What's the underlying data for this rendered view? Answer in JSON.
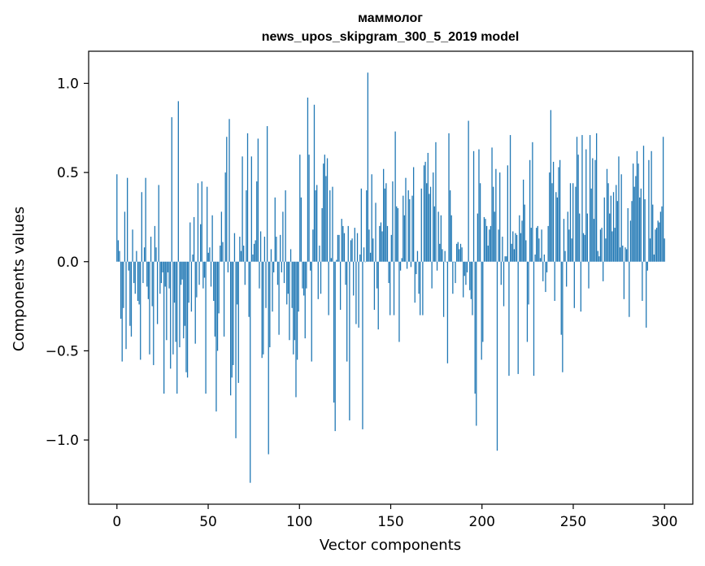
{
  "chart_data": {
    "type": "bar",
    "title": "маммолог",
    "subtitle": "news_upos_skipgram_300_5_2019 model",
    "xlabel": "Vector components",
    "ylabel": "Components values",
    "xlim": [
      -15.5,
      315.5
    ],
    "ylim": [
      -1.36,
      1.18
    ],
    "xticks": [
      0,
      50,
      100,
      150,
      200,
      250,
      300
    ],
    "yticks": [
      -1.0,
      -0.5,
      0.0,
      0.5,
      1.0
    ],
    "ytick_labels": [
      "−1.0",
      "−0.5",
      "0.0",
      "0.5",
      "1.0"
    ],
    "grid": false,
    "bar_color": "#1f77b4",
    "values": [
      0.49,
      0.12,
      0.06,
      -0.32,
      -0.56,
      -0.26,
      0.28,
      -0.49,
      0.47,
      -0.05,
      -0.36,
      -0.42,
      0.18,
      -0.12,
      -0.18,
      0.06,
      -0.22,
      -0.24,
      -0.55,
      0.39,
      -0.12,
      0.08,
      0.47,
      -0.14,
      -0.21,
      -0.52,
      0.14,
      -0.25,
      -0.58,
      0.2,
      0.08,
      -0.35,
      0.43,
      -0.18,
      -0.12,
      -0.06,
      -0.74,
      -0.14,
      -0.44,
      -0.06,
      -0.15,
      -0.6,
      0.81,
      -0.52,
      -0.23,
      -0.45,
      -0.74,
      0.9,
      -0.48,
      -0.13,
      -0.1,
      -0.43,
      -0.36,
      -0.62,
      -0.65,
      -0.23,
      0.22,
      -0.28,
      0.04,
      0.25,
      -0.46,
      -0.2,
      0.44,
      -0.13,
      0.21,
      0.45,
      -0.15,
      -0.09,
      -0.74,
      0.42,
      0.05,
      0.08,
      -0.14,
      0.26,
      -0.22,
      -0.42,
      -0.84,
      -0.5,
      -0.29,
      0.09,
      0.28,
      0.11,
      -0.42,
      0.5,
      0.7,
      -0.06,
      0.8,
      -0.75,
      -0.65,
      -0.58,
      0.16,
      -0.99,
      -0.24,
      -0.68,
      0.14,
      0.06,
      0.59,
      0.09,
      -0.13,
      0.4,
      0.72,
      -0.31,
      -1.24,
      0.59,
      0.04,
      0.1,
      0.12,
      0.45,
      0.69,
      -0.15,
      0.17,
      -0.54,
      -0.52,
      0.14,
      -0.26,
      0.76,
      -1.08,
      -0.48,
      0.07,
      -0.28,
      -0.06,
      0.36,
      0.14,
      -0.13,
      -0.41,
      0.15,
      -0.06,
      0.28,
      -0.12,
      0.4,
      -0.24,
      -0.18,
      -0.44,
      0.07,
      -0.26,
      -0.52,
      -0.44,
      -0.76,
      -0.55,
      -0.28,
      0.6,
      0.36,
      -0.15,
      -0.19,
      -0.43,
      -0.15,
      0.92,
      0.6,
      -0.05,
      -0.56,
      0.18,
      0.88,
      0.4,
      0.43,
      -0.21,
      0.09,
      -0.18,
      0.3,
      0.55,
      0.6,
      0.48,
      0.58,
      -0.3,
      0.4,
      0.02,
      0.42,
      -0.79,
      -0.95,
      0.01,
      0.15,
      0.15,
      -0.27,
      0.24,
      0.2,
      0.16,
      -0.13,
      -0.56,
      0.2,
      -0.89,
      0.12,
      0.13,
      -0.19,
      0.19,
      -0.35,
      0.16,
      -0.37,
      0.04,
      0.41,
      -0.94,
      0.08,
      0.0,
      0.4,
      1.06,
      0.18,
      0.05,
      0.49,
      0.13,
      -0.27,
      0.33,
      -0.15,
      -0.38,
      0.2,
      0.22,
      0.17,
      0.52,
      0.41,
      0.44,
      0.2,
      -0.12,
      -0.3,
      0.15,
      0.45,
      -0.3,
      0.73,
      0.31,
      0.3,
      -0.45,
      -0.05,
      0.02,
      0.37,
      0.26,
      0.47,
      -0.04,
      0.4,
      0.35,
      -0.03,
      0.37,
      0.53,
      -0.23,
      -0.07,
      0.06,
      -0.18,
      -0.3,
      0.41,
      -0.3,
      0.54,
      0.56,
      0.44,
      0.61,
      0.38,
      0.42,
      -0.15,
      0.5,
      0.31,
      0.67,
      -0.05,
      0.28,
      0.1,
      0.26,
      0.07,
      -0.31,
      0.06,
      0.0,
      -0.57,
      0.72,
      0.4,
      0.26,
      -0.18,
      0.0,
      -0.12,
      0.1,
      0.11,
      0.07,
      0.1,
      0.08,
      -0.2,
      -0.08,
      -0.13,
      -0.06,
      0.79,
      -0.16,
      -0.21,
      -0.3,
      0.62,
      -0.74,
      -0.92,
      0.27,
      0.63,
      0.44,
      -0.55,
      -0.45,
      0.25,
      0.24,
      0.2,
      0.09,
      0.18,
      0.2,
      0.64,
      0.42,
      0.28,
      0.52,
      -1.06,
      0.18,
      0.5,
      -0.13,
      0.14,
      -0.25,
      0.03,
      0.03,
      0.54,
      -0.64,
      0.71,
      0.1,
      0.17,
      0.07,
      0.16,
      0.15,
      -0.63,
      0.26,
      0.16,
      0.23,
      0.46,
      0.32,
      0.12,
      -0.45,
      -0.24,
      0.57,
      0.19,
      0.67,
      -0.64,
      0.04,
      0.19,
      0.2,
      0.13,
      0.02,
      0.18,
      -0.11,
      0.04,
      -0.17,
      -0.06,
      0.2,
      0.5,
      0.85,
      0.44,
      0.56,
      -0.22,
      0.39,
      0.36,
      0.53,
      0.57,
      -0.41,
      -0.62,
      0.24,
      0.06,
      -0.14,
      0.28,
      0.18,
      0.44,
      0.13,
      0.44,
      -0.26,
      0.42,
      0.7,
      0.6,
      0.27,
      -0.28,
      0.71,
      0.16,
      0.15,
      0.63,
      0.27,
      -0.15,
      0.71,
      0.41,
      0.58,
      0.24,
      0.57,
      0.72,
      0.06,
      0.03,
      0.18,
      0.19,
      -0.11,
      0.36,
      0.13,
      0.52,
      0.44,
      0.27,
      0.37,
      0.17,
      0.39,
      0.19,
      0.43,
      0.34,
      0.59,
      0.08,
      0.49,
      0.09,
      -0.21,
      0.08,
      0.07,
      0.3,
      -0.31,
      0.23,
      0.34,
      0.55,
      0.42,
      0.48,
      0.62,
      0.55,
      0.36,
      0.41,
      -0.22,
      0.65,
      0.35,
      -0.37,
      -0.05,
      0.57,
      0.13,
      0.62,
      0.32,
      0.04,
      0.18,
      0.19,
      0.23,
      0.22,
      0.28,
      0.31,
      0.7,
      0.13
    ]
  }
}
